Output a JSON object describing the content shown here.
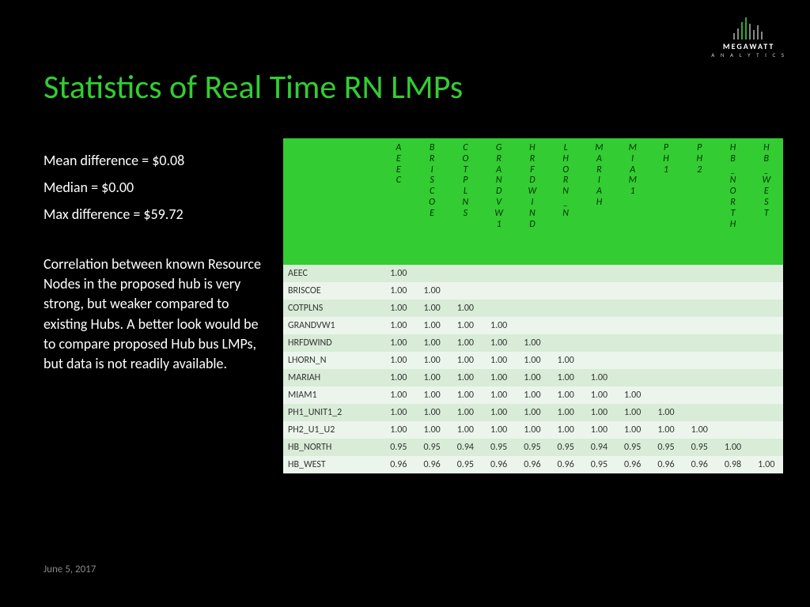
{
  "logo": {
    "name_bold": "MEGAWATT",
    "sub": "A N A L Y T I C S"
  },
  "title": "Statistics of Real Time RN LMPs",
  "stats": {
    "mean": "Mean difference = $0.08",
    "median": "Median = $0.00",
    "max": "Max difference = $59.72"
  },
  "description": "Correlation between known Resource Nodes in the proposed hub is very strong, but weaker compared to existing Hubs.  A better look would be to compare proposed Hub bus LMPs, but data is not readily available.",
  "date": "June 5, 2017",
  "table": {
    "header_bg": "#33cc33",
    "header_text_color": "#003300",
    "row_odd_bg": "#d8ecd8",
    "row_even_bg": "#ecf5ec",
    "cell_text_color": "#333333",
    "columns": [
      "AEEC",
      "BRISCOE",
      "COTPLNS",
      "GRANDVW1",
      "HRFDWIND",
      "LHORN_N",
      "MARIAH",
      "MIAM1",
      "PH1",
      "PH2",
      "HB_NORTH",
      "HB_WEST"
    ],
    "rows": [
      {
        "label": "AEEC",
        "values": [
          "1.00",
          "",
          "",
          "",
          "",
          "",
          "",
          "",
          "",
          "",
          "",
          ""
        ]
      },
      {
        "label": "BRISCOE",
        "values": [
          "1.00",
          "1.00",
          "",
          "",
          "",
          "",
          "",
          "",
          "",
          "",
          "",
          ""
        ]
      },
      {
        "label": "COTPLNS",
        "values": [
          "1.00",
          "1.00",
          "1.00",
          "",
          "",
          "",
          "",
          "",
          "",
          "",
          "",
          ""
        ]
      },
      {
        "label": "GRANDVW1",
        "values": [
          "1.00",
          "1.00",
          "1.00",
          "1.00",
          "",
          "",
          "",
          "",
          "",
          "",
          "",
          ""
        ]
      },
      {
        "label": "HRFDWIND",
        "values": [
          "1.00",
          "1.00",
          "1.00",
          "1.00",
          "1.00",
          "",
          "",
          "",
          "",
          "",
          "",
          ""
        ]
      },
      {
        "label": "LHORN_N",
        "values": [
          "1.00",
          "1.00",
          "1.00",
          "1.00",
          "1.00",
          "1.00",
          "",
          "",
          "",
          "",
          "",
          ""
        ]
      },
      {
        "label": "MARIAH",
        "values": [
          "1.00",
          "1.00",
          "1.00",
          "1.00",
          "1.00",
          "1.00",
          "1.00",
          "",
          "",
          "",
          "",
          ""
        ]
      },
      {
        "label": "MIAM1",
        "values": [
          "1.00",
          "1.00",
          "1.00",
          "1.00",
          "1.00",
          "1.00",
          "1.00",
          "1.00",
          "",
          "",
          "",
          ""
        ]
      },
      {
        "label": " PH1_UNIT1_2",
        "values": [
          "1.00",
          "1.00",
          "1.00",
          "1.00",
          "1.00",
          "1.00",
          "1.00",
          "1.00",
          "1.00",
          "",
          "",
          ""
        ]
      },
      {
        "label": "PH2_U1_U2",
        "values": [
          "1.00",
          "1.00",
          "1.00",
          "1.00",
          "1.00",
          "1.00",
          "1.00",
          "1.00",
          "1.00",
          "1.00",
          "",
          ""
        ]
      },
      {
        "label": "HB_NORTH",
        "values": [
          "0.95",
          "0.95",
          "0.94",
          "0.95",
          "0.95",
          "0.95",
          "0.94",
          "0.95",
          "0.95",
          "0.95",
          "1.00",
          ""
        ]
      },
      {
        "label": "HB_WEST",
        "values": [
          "0.96",
          "0.96",
          "0.95",
          "0.96",
          "0.96",
          "0.96",
          "0.95",
          "0.96",
          "0.96",
          "0.96",
          "0.98",
          "1.00"
        ]
      }
    ]
  }
}
